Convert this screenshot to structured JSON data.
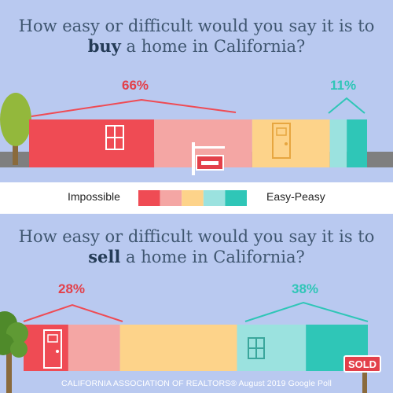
{
  "buy_panel": {
    "title_before": "How easy or difficult would you say it is to ",
    "title_emphasis": "buy",
    "title_after": " a home in California?",
    "difficult_pct": "66%",
    "easy_pct": "11%"
  },
  "sell_panel": {
    "title_before": "How easy or difficult would you say it is to ",
    "title_emphasis": "sell",
    "title_after": " a home in California?",
    "difficult_pct": "28%",
    "easy_pct": "38%",
    "sold_sign": "SOLD"
  },
  "legend": {
    "left_label": "Impossible",
    "right_label": "Easy-Peasy",
    "colors": [
      "#ef4b54",
      "#f4a6a4",
      "#fdd38a",
      "#9be2df",
      "#2fc6b7"
    ]
  },
  "footer": "CALIFORNIA ASSOCIATION OF REALTORS® August 2019 Google Poll",
  "chart_data": [
    {
      "type": "bar",
      "title": "How easy or difficult would you say it is to buy a home in California?",
      "stacked": true,
      "categories": [
        "Impossible",
        "",
        "",
        "",
        "Easy-Peasy"
      ],
      "annotations": [
        {
          "group": "difficult",
          "label": "66%",
          "value": 66
        },
        {
          "group": "easy",
          "label": "11%",
          "value": 11
        }
      ],
      "values": [
        37,
        29,
        23,
        5,
        6
      ],
      "colors": [
        "#ef4b54",
        "#f4a6a4",
        "#fdd38a",
        "#9be2df",
        "#2fc6b7"
      ]
    },
    {
      "type": "bar",
      "title": "How easy or difficult would you say it is to sell a home in California?",
      "stacked": true,
      "categories": [
        "Impossible",
        "",
        "",
        "",
        "Easy-Peasy"
      ],
      "annotations": [
        {
          "group": "difficult",
          "label": "28%",
          "value": 28
        },
        {
          "group": "easy",
          "label": "38%",
          "value": 38
        }
      ],
      "values": [
        13,
        15,
        34,
        20,
        18
      ],
      "colors": [
        "#ef4b54",
        "#f4a6a4",
        "#fdd38a",
        "#9be2df",
        "#2fc6b7"
      ]
    }
  ]
}
